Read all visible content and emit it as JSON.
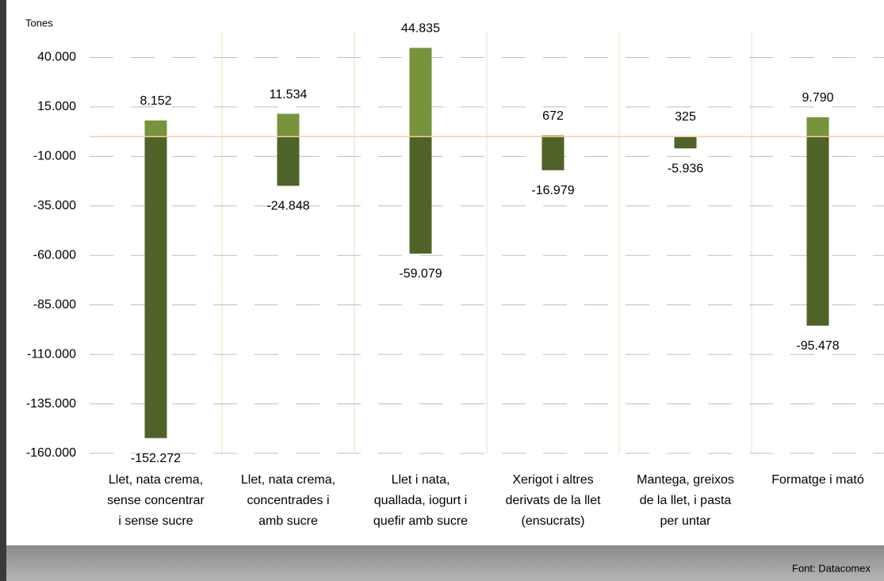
{
  "chart_data": {
    "type": "bar",
    "y_label": "Tones",
    "source": "Font: Datacomex",
    "categories": [
      [
        "Llet, nata crema,",
        "sense concentrar",
        "i sense sucre"
      ],
      [
        "Llet, nata crema,",
        "concentrades i",
        "amb sucre"
      ],
      [
        "Llet i nata,",
        "quallada, iogurt i",
        "quefir amb sucre"
      ],
      [
        "Xerigot i altres",
        "derivats de la llet",
        "(ensucrats)"
      ],
      [
        "Mantega, greixos",
        "de la llet, i  pasta",
        "per untar"
      ],
      [
        "Formatge i mató"
      ]
    ],
    "series": [
      {
        "color": "#77933c",
        "values": [
          8152,
          11534,
          44835,
          672,
          325,
          9790
        ],
        "value_labels": [
          "8.152",
          "11.534",
          "44.835",
          "672",
          "325",
          "9.790"
        ]
      },
      {
        "color": "#4f6228",
        "values": [
          -152272,
          -24848,
          -59079,
          -16979,
          -5936,
          -95478
        ],
        "value_labels": [
          "-152.272",
          "-24.848",
          "-59.079",
          "-16.979",
          "-5.936",
          "-95.478"
        ]
      }
    ],
    "ylim": [
      -160000,
      53000
    ],
    "yticks": [
      {
        "value": 40000,
        "label": "40.000"
      },
      {
        "value": 15000,
        "label": "15.000"
      },
      {
        "value": -10000,
        "label": "-10.000"
      },
      {
        "value": -35000,
        "label": "-35.000"
      },
      {
        "value": -60000,
        "label": "-60.000"
      },
      {
        "value": -85000,
        "label": "-85.000"
      },
      {
        "value": -110000,
        "label": "-110.000"
      },
      {
        "value": -135000,
        "label": "-135.000"
      },
      {
        "value": -160000,
        "label": "-160.000"
      }
    ],
    "grid": true
  }
}
